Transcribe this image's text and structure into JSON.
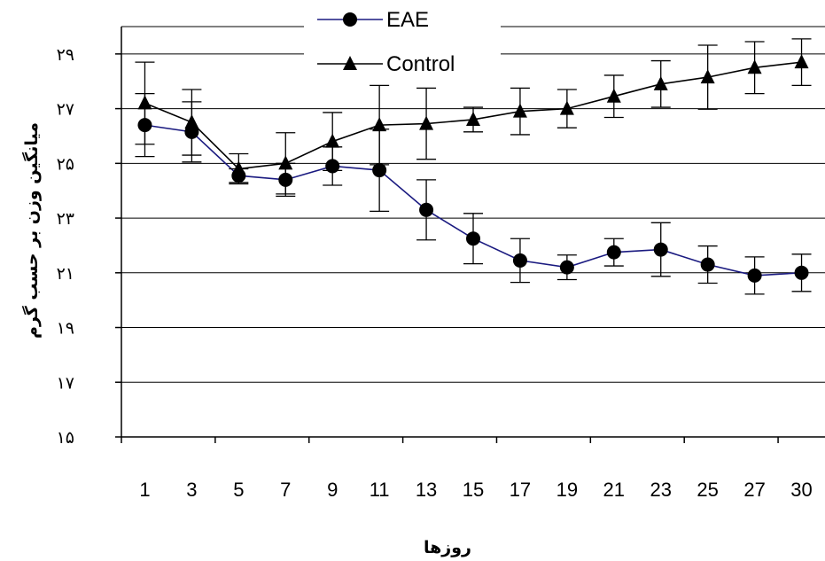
{
  "chart_data": {
    "type": "line",
    "xlabel": "روزها",
    "ylabel": "میانگین وزن بر حسب گرم",
    "categories": [
      "1",
      "3",
      "5",
      "7",
      "9",
      "11",
      "13",
      "15",
      "17",
      "19",
      "21",
      "23",
      "25",
      "27",
      "30"
    ],
    "y_tick_labels": [
      "۱۵",
      "۱۷",
      "۱۹",
      "۲۱",
      "۲۳",
      "۲۵",
      "۲۷",
      "۲۹"
    ],
    "y_tick_values": [
      15,
      17,
      19,
      21,
      23,
      25,
      27,
      29
    ],
    "ylim": [
      15,
      30
    ],
    "grid": true,
    "legend_placement": "top-center",
    "series": [
      {
        "name": "EAE",
        "marker": "circle",
        "color": "#1a1a80",
        "values": [
          26.4,
          26.15,
          24.55,
          24.4,
          24.9,
          24.75,
          23.3,
          22.25,
          21.45,
          21.2,
          21.75,
          21.85,
          21.3,
          20.9,
          21.0
        ],
        "errors": [
          1.15,
          1.1,
          0.25,
          0.6,
          0.7,
          1.5,
          1.1,
          0.92,
          0.8,
          0.45,
          0.5,
          0.98,
          0.68,
          0.68,
          0.68
        ]
      },
      {
        "name": "Control",
        "marker": "triangle",
        "color": "#000000",
        "values": [
          27.2,
          26.5,
          24.8,
          25.0,
          25.8,
          26.4,
          26.45,
          26.6,
          26.9,
          27.0,
          27.45,
          27.9,
          28.15,
          28.5,
          28.7
        ],
        "errors": [
          1.5,
          1.2,
          0.55,
          1.12,
          1.06,
          1.45,
          1.3,
          0.45,
          0.85,
          0.7,
          0.77,
          0.85,
          1.17,
          0.95,
          0.85
        ]
      }
    ]
  }
}
